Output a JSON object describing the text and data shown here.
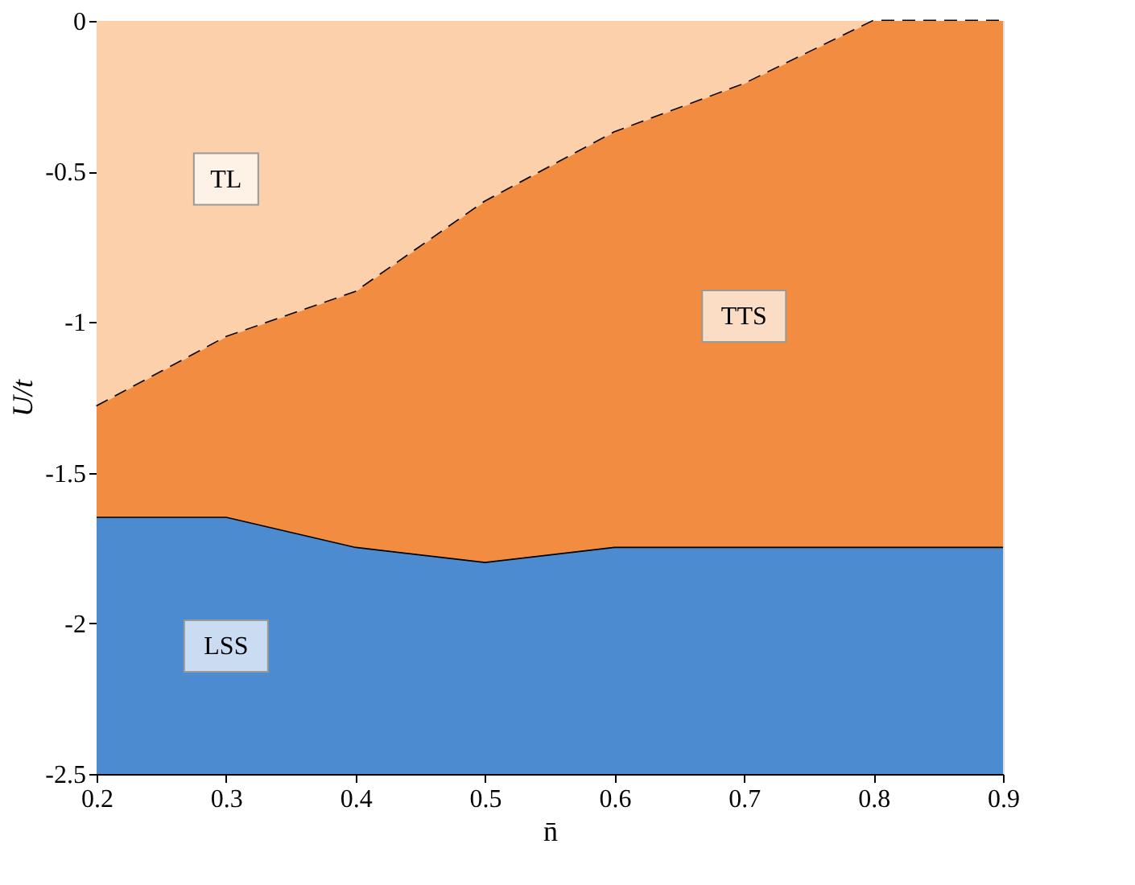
{
  "chart_data": {
    "type": "area",
    "stacked": true,
    "xlabel": "n̄",
    "ylabel": "U/t",
    "x": [
      0.2,
      0.3,
      0.4,
      0.5,
      0.6,
      0.7,
      0.8,
      0.9
    ],
    "series": [
      {
        "name": "TL",
        "color": "#fbd0aa",
        "line_style": "dashed",
        "values": [
          -1.28,
          -1.05,
          -0.9,
          -0.6,
          -0.37,
          -0.21,
          0,
          0
        ]
      },
      {
        "name": "TTS",
        "color": "#f28c40",
        "line_style": "solid",
        "values": [
          -0.37,
          -0.6,
          -0.85,
          -1.2,
          -1.38,
          -1.54,
          -1.75,
          -1.75
        ]
      },
      {
        "name": "LSS",
        "color": "#4d8bd1",
        "values": [
          -0.85,
          -0.85,
          -0.75,
          -0.7,
          -0.75,
          -0.75,
          -0.75,
          -0.75
        ]
      }
    ],
    "xlim": [
      0.2,
      0.9
    ],
    "ylim": [
      -2.5,
      0
    ],
    "xticks": [
      0.2,
      0.3,
      0.4,
      0.5,
      0.6,
      0.7,
      0.8,
      0.9
    ],
    "yticks": [
      -2.5,
      -2,
      -1.5,
      -1,
      -0.5,
      0
    ],
    "grid": false,
    "marker": "none"
  }
}
